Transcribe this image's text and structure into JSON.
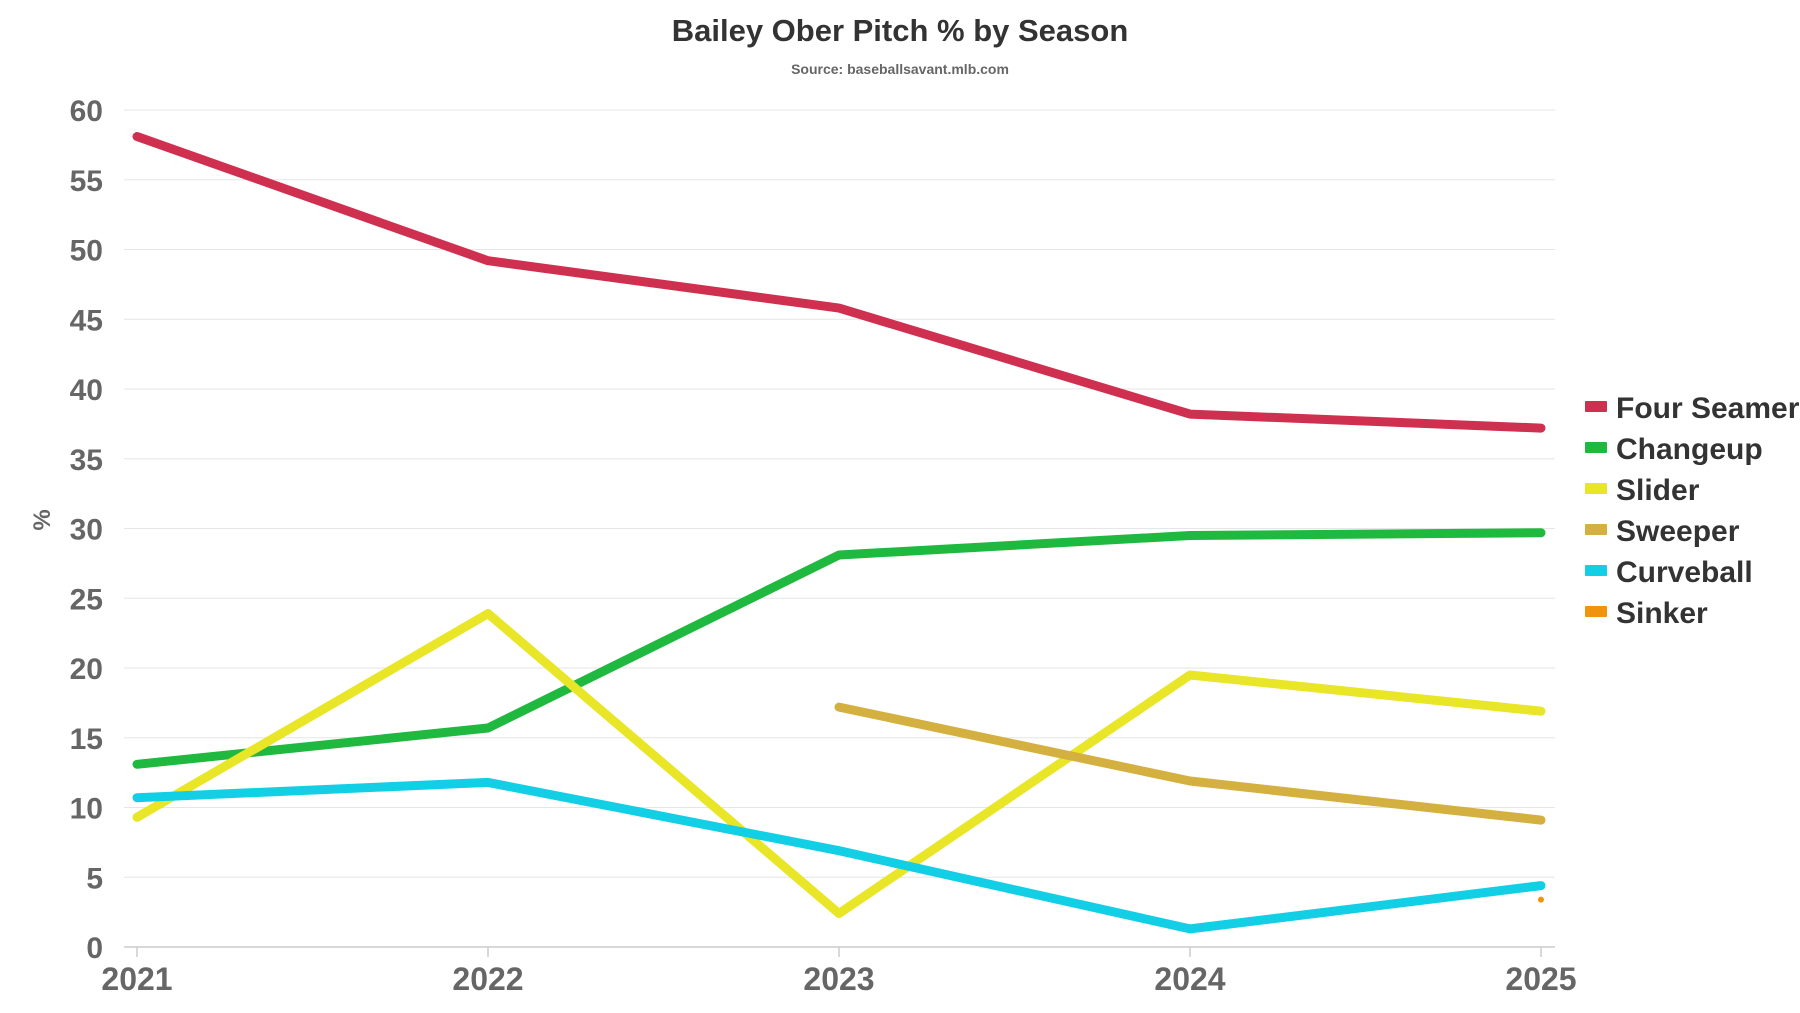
{
  "chart_data": {
    "type": "line",
    "title": "Bailey Ober Pitch % by Season",
    "subtitle": "Source: baseballsavant.mlb.com",
    "xlabel": "",
    "ylabel": "%",
    "ylim": [
      0,
      60
    ],
    "yticks": [
      0,
      5,
      10,
      15,
      20,
      25,
      30,
      35,
      40,
      45,
      50,
      55,
      60
    ],
    "categories": [
      "2021",
      "2022",
      "2023",
      "2024",
      "2025"
    ],
    "grid": true,
    "legend_position": "right",
    "series": [
      {
        "name": "Four Seamer",
        "color": "#d0304f",
        "values": [
          58.1,
          49.2,
          45.8,
          38.2,
          37.2
        ]
      },
      {
        "name": "Changeup",
        "color": "#20b93f",
        "values": [
          13.1,
          15.7,
          28.1,
          29.5,
          29.7
        ]
      },
      {
        "name": "Slider",
        "color": "#e9e527",
        "values": [
          9.3,
          23.9,
          2.4,
          19.5,
          16.9
        ]
      },
      {
        "name": "Sweeper",
        "color": "#d4b040",
        "values": [
          null,
          null,
          17.2,
          11.9,
          9.1
        ]
      },
      {
        "name": "Curveball",
        "color": "#13cfe6",
        "values": [
          10.7,
          11.8,
          6.9,
          1.3,
          4.4
        ]
      },
      {
        "name": "Sinker",
        "color": "#f09410",
        "values": [
          null,
          null,
          null,
          null,
          3.4
        ]
      }
    ]
  }
}
